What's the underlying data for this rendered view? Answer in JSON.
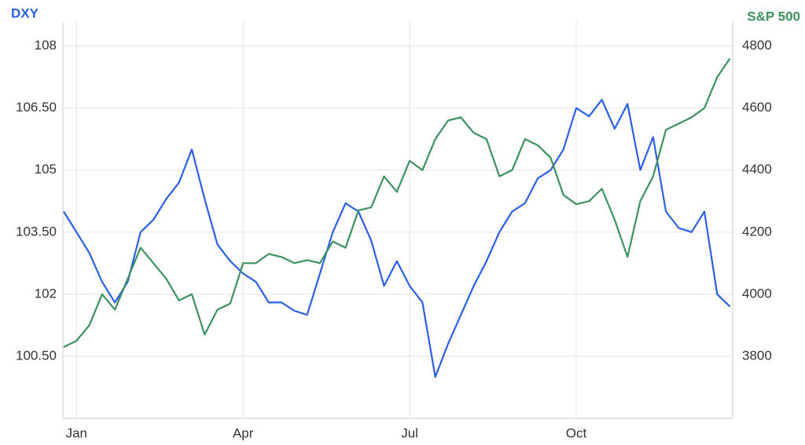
{
  "chart_data": {
    "type": "line",
    "y_label": "DXY",
    "y2_label": "S&P 500",
    "categories": [
      null,
      "Jan",
      null,
      null,
      null,
      null,
      null,
      null,
      null,
      null,
      null,
      null,
      null,
      null,
      "Apr",
      null,
      null,
      null,
      null,
      null,
      null,
      null,
      null,
      null,
      null,
      null,
      null,
      "Jul",
      null,
      null,
      null,
      null,
      null,
      null,
      null,
      null,
      null,
      null,
      null,
      null,
      "Oct",
      null,
      null,
      null,
      null,
      null,
      null,
      null,
      null,
      null,
      null,
      null,
      null
    ],
    "series": [
      {
        "name": "DXY",
        "color": "#2b5fe6",
        "axis": "y",
        "values": [
          104.0,
          103.5,
          103.0,
          102.3,
          101.8,
          102.3,
          103.5,
          103.8,
          104.3,
          104.7,
          105.5,
          104.3,
          103.2,
          102.8,
          102.5,
          102.3,
          101.8,
          101.8,
          101.6,
          101.5,
          102.5,
          103.5,
          104.2,
          104.0,
          103.3,
          102.2,
          102.8,
          102.2,
          101.8,
          100.0,
          100.8,
          101.5,
          102.2,
          102.8,
          103.5,
          104.0,
          104.2,
          104.8,
          105.0,
          105.5,
          106.5,
          106.3,
          106.7,
          106.0,
          106.6,
          105.0,
          105.8,
          104.0,
          103.6,
          103.5,
          104.0,
          102.0,
          101.7
        ]
      },
      {
        "name": "S&P 500",
        "color": "#3d9160",
        "axis": "y2",
        "values": [
          3830,
          3850,
          3900,
          4000,
          3950,
          4050,
          4150,
          4100,
          4050,
          3980,
          4000,
          3870,
          3950,
          3970,
          4100,
          4100,
          4130,
          4120,
          4100,
          4110,
          4100,
          4170,
          4150,
          4270,
          4280,
          4380,
          4330,
          4430,
          4400,
          4500,
          4560,
          4570,
          4520,
          4500,
          4380,
          4400,
          4500,
          4480,
          4440,
          4320,
          4290,
          4300,
          4340,
          4240,
          4120,
          4300,
          4380,
          4530,
          4550,
          4570,
          4600,
          4700,
          4760
        ]
      }
    ],
    "ylim": [
      99,
      108.6
    ],
    "yticks": [
      {
        "value": 100.5,
        "label": "100.50"
      },
      102,
      {
        "value": 103.5,
        "label": "103.50"
      },
      105,
      {
        "value": 106.5,
        "label": "106.50"
      },
      108
    ],
    "y2lim": [
      3600,
      4880
    ],
    "y2ticks": [
      3800,
      4000,
      4200,
      4400,
      4600,
      4800
    ],
    "grid": true
  }
}
